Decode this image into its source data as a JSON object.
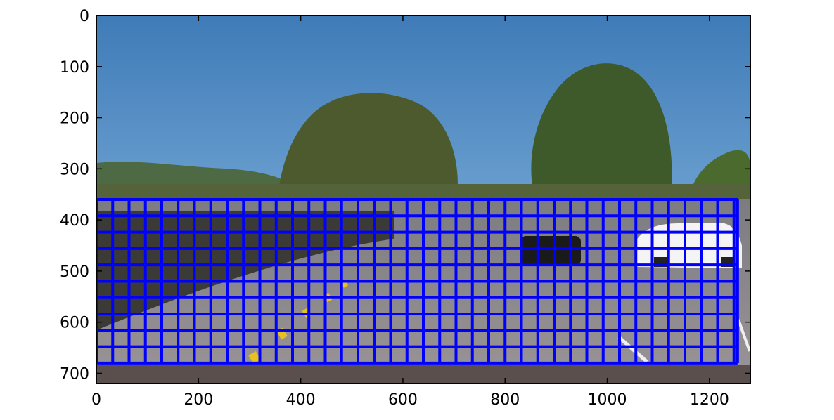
{
  "chart_data": {
    "type": "image",
    "title": "",
    "xlabel": "",
    "ylabel": "",
    "xlim": [
      0,
      1280
    ],
    "ylim": [
      720,
      0
    ],
    "x_ticks": [
      0,
      200,
      400,
      600,
      800,
      1000,
      1200
    ],
    "y_ticks": [
      0,
      100,
      200,
      300,
      400,
      500,
      600,
      700
    ],
    "grid_overlay": {
      "description": "sliding window search grid",
      "color": "#0000ff",
      "x_start": 0,
      "x_end": 1255,
      "y_start": 360,
      "y_end": 680,
      "cell_width": 32,
      "cell_height": 32
    },
    "image_regions": {
      "sky_color": "#4a86c0",
      "hills_color": "#4e6a44",
      "trees_color": "#4d5a2e",
      "road_color": "#8a8a8e",
      "lane_marking_color": "#e8c020",
      "car_white_color": "#f4f4f4",
      "car_black_color": "#1a1a1a"
    }
  }
}
